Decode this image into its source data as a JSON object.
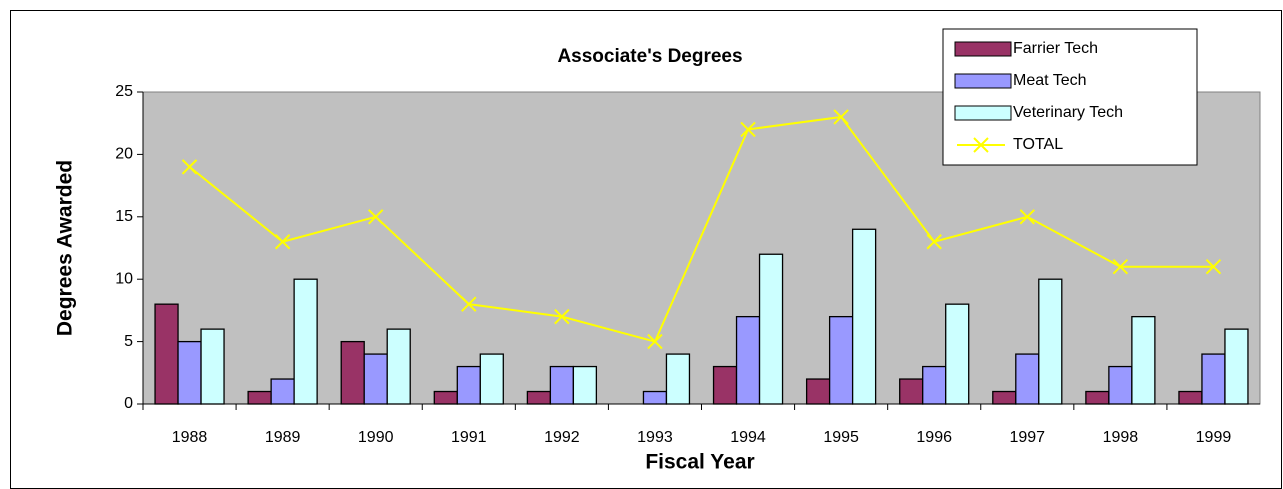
{
  "chart_data": {
    "type": "bar",
    "title": "Associate's Degrees",
    "x_label": "Fiscal Year",
    "y_label": "Degrees Awarded",
    "categories": [
      "1988",
      "1989",
      "1990",
      "1991",
      "1992",
      "1993",
      "1994",
      "1995",
      "1996",
      "1997",
      "1998",
      "1999"
    ],
    "series": [
      {
        "name": "Farrier Tech",
        "color": "#993366",
        "values": [
          8,
          1,
          5,
          1,
          1,
          0,
          3,
          2,
          2,
          1,
          1,
          1
        ]
      },
      {
        "name": "Meat Tech",
        "color": "#9999ff",
        "values": [
          5,
          2,
          4,
          3,
          3,
          1,
          7,
          7,
          3,
          4,
          3,
          4
        ]
      },
      {
        "name": "Veterinary Tech",
        "color": "#ccffff",
        "values": [
          6,
          10,
          6,
          4,
          3,
          4,
          12,
          14,
          8,
          10,
          7,
          6
        ]
      },
      {
        "name": "TOTAL",
        "color": "#ffff00",
        "type": "line",
        "values": [
          19,
          13,
          15,
          8,
          7,
          5,
          22,
          23,
          13,
          15,
          11,
          11
        ]
      }
    ],
    "ylim": [
      0,
      25
    ],
    "yticks": [
      0,
      5,
      10,
      15,
      20,
      25
    ],
    "legend": "top-right",
    "plot_background": "#c0c0c0"
  }
}
